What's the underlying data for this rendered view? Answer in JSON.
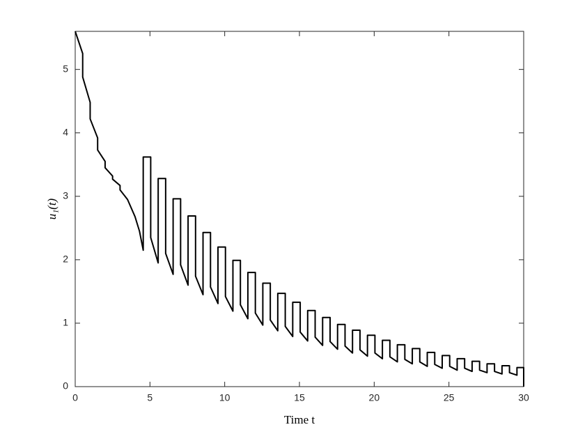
{
  "chart_data": {
    "type": "line",
    "xlabel": "Time t",
    "ylabel": "u₁(t)",
    "xlim": [
      0,
      30
    ],
    "ylim": [
      0,
      5.6
    ],
    "xticks": [
      0,
      5,
      10,
      15,
      20,
      25,
      30
    ],
    "yticks": [
      0,
      1,
      2,
      3,
      4,
      5
    ],
    "grid": false,
    "series": [
      {
        "color": "#000000",
        "x": [
          0,
          0.5,
          0.5,
          1.0,
          1.0,
          1.5,
          1.5,
          2.0,
          2.0,
          2.5,
          2.5,
          3.0,
          3.0,
          3.5,
          4.0,
          4.3,
          4.55,
          4.55,
          5.05,
          5.05,
          5.55,
          5.55,
          6.05,
          6.05,
          6.55,
          6.55,
          7.05,
          7.05,
          7.55,
          7.55,
          8.05,
          8.05,
          8.55,
          8.55,
          9.05,
          9.05,
          9.55,
          9.55,
          10.05,
          10.05,
          10.55,
          10.55,
          11.05,
          11.05,
          11.55,
          11.55,
          12.05,
          12.05,
          12.55,
          12.55,
          13.05,
          13.05,
          13.55,
          13.55,
          14.05,
          14.05,
          14.55,
          14.55,
          15.05,
          15.05,
          15.55,
          15.55,
          16.05,
          16.05,
          16.55,
          16.55,
          17.05,
          17.05,
          17.55,
          17.55,
          18.05,
          18.05,
          18.55,
          18.55,
          19.05,
          19.05,
          19.55,
          19.55,
          20.05,
          20.05,
          20.55,
          20.55,
          21.05,
          21.05,
          21.55,
          21.55,
          22.05,
          22.05,
          22.55,
          22.55,
          23.05,
          23.05,
          23.55,
          23.55,
          24.05,
          24.05,
          24.55,
          24.55,
          25.05,
          25.05,
          25.55,
          25.55,
          26.05,
          26.05,
          26.55,
          26.55,
          27.05,
          27.05,
          27.55,
          27.55,
          28.05,
          28.05,
          28.55,
          28.55,
          29.05,
          29.05,
          29.55,
          29.55,
          30,
          30
        ],
        "values": [
          5.6,
          5.25,
          4.88,
          4.48,
          4.22,
          3.92,
          3.73,
          3.55,
          3.45,
          3.32,
          3.27,
          3.17,
          3.1,
          2.95,
          2.68,
          2.45,
          2.15,
          3.62,
          3.62,
          2.35,
          1.95,
          3.28,
          3.28,
          2.1,
          1.77,
          2.96,
          2.96,
          1.92,
          1.6,
          2.69,
          2.69,
          1.74,
          1.45,
          2.43,
          2.43,
          1.57,
          1.31,
          2.2,
          2.2,
          1.42,
          1.19,
          1.99,
          1.99,
          1.29,
          1.07,
          1.8,
          1.8,
          1.16,
          0.97,
          1.63,
          1.63,
          1.05,
          0.88,
          1.47,
          1.47,
          0.95,
          0.79,
          1.33,
          1.33,
          0.86,
          0.72,
          1.2,
          1.2,
          0.78,
          0.65,
          1.09,
          1.09,
          0.71,
          0.59,
          0.98,
          0.98,
          0.64,
          0.53,
          0.89,
          0.89,
          0.58,
          0.48,
          0.81,
          0.81,
          0.53,
          0.44,
          0.73,
          0.73,
          0.47,
          0.39,
          0.66,
          0.66,
          0.43,
          0.36,
          0.6,
          0.6,
          0.39,
          0.32,
          0.54,
          0.54,
          0.35,
          0.29,
          0.49,
          0.49,
          0.32,
          0.26,
          0.44,
          0.44,
          0.29,
          0.24,
          0.4,
          0.4,
          0.26,
          0.22,
          0.36,
          0.36,
          0.24,
          0.2,
          0.33,
          0.33,
          0.22,
          0.18,
          0.3,
          0.3,
          0
        ]
      }
    ]
  }
}
